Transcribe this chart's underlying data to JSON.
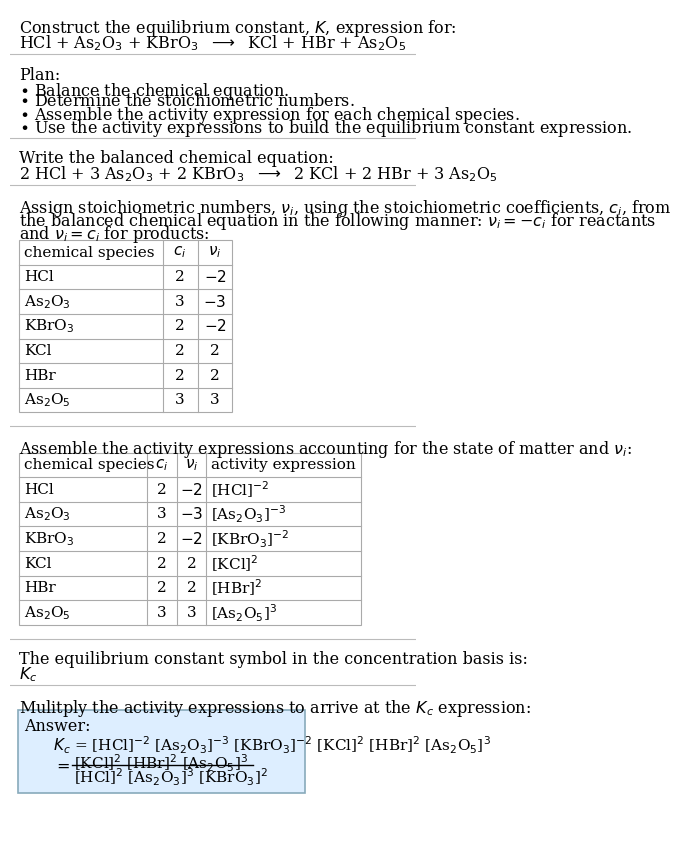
{
  "title_line1": "Construct the equilibrium constant, $K$, expression for:",
  "title_line2": "HCl + As$_2$O$_3$ + KBrO$_3$  $\\longrightarrow$  KCl + HBr + As$_2$O$_5$",
  "plan_header": "Plan:",
  "plan_items": [
    "$\\bullet$ Balance the chemical equation.",
    "$\\bullet$ Determine the stoichiometric numbers.",
    "$\\bullet$ Assemble the activity expression for each chemical species.",
    "$\\bullet$ Use the activity expressions to build the equilibrium constant expression."
  ],
  "balanced_header": "Write the balanced chemical equation:",
  "balanced_eq": "2 HCl + 3 As$_2$O$_3$ + 2 KBrO$_3$  $\\longrightarrow$  2 KCl + 2 HBr + 3 As$_2$O$_5$",
  "stoich_header_lines": [
    "Assign stoichiometric numbers, $\\nu_i$, using the stoichiometric coefficients, $c_i$, from",
    "the balanced chemical equation in the following manner: $\\nu_i = -c_i$ for reactants",
    "and $\\nu_i = c_i$ for products:"
  ],
  "table1_headers": [
    "chemical species",
    "$c_i$",
    "$\\nu_i$"
  ],
  "table1_data": [
    [
      "HCl",
      "2",
      "$-2$"
    ],
    [
      "As$_2$O$_3$",
      "3",
      "$-3$"
    ],
    [
      "KBrO$_3$",
      "2",
      "$-2$"
    ],
    [
      "KCl",
      "2",
      "2"
    ],
    [
      "HBr",
      "2",
      "2"
    ],
    [
      "As$_2$O$_5$",
      "3",
      "3"
    ]
  ],
  "activity_header": "Assemble the activity expressions accounting for the state of matter and $\\nu_i$:",
  "table2_headers": [
    "chemical species",
    "$c_i$",
    "$\\nu_i$",
    "activity expression"
  ],
  "table2_data": [
    [
      "HCl",
      "2",
      "$-2$",
      "[HCl]$^{-2}$"
    ],
    [
      "As$_2$O$_3$",
      "3",
      "$-3$",
      "[As$_2$O$_3$]$^{-3}$"
    ],
    [
      "KBrO$_3$",
      "2",
      "$-2$",
      "[KBrO$_3$]$^{-2}$"
    ],
    [
      "KCl",
      "2",
      "2",
      "[KCl]$^2$"
    ],
    [
      "HBr",
      "2",
      "2",
      "[HBr]$^2$"
    ],
    [
      "As$_2$O$_5$",
      "3",
      "3",
      "[As$_2$O$_5$]$^3$"
    ]
  ],
  "kc_header": "The equilibrium constant symbol in the concentration basis is:",
  "kc_symbol": "$K_c$",
  "multiply_header": "Mulitply the activity expressions to arrive at the $K_c$ expression:",
  "answer_label": "Answer:",
  "bg_color": "#ffffff",
  "table_line_color": "#aaaaaa",
  "answer_box_fill": "#ddeeff",
  "answer_box_edge": "#88aabb",
  "text_color": "#000000",
  "sep_color": "#bbbbbb",
  "fs": 11.5,
  "fs_table": 11.0
}
